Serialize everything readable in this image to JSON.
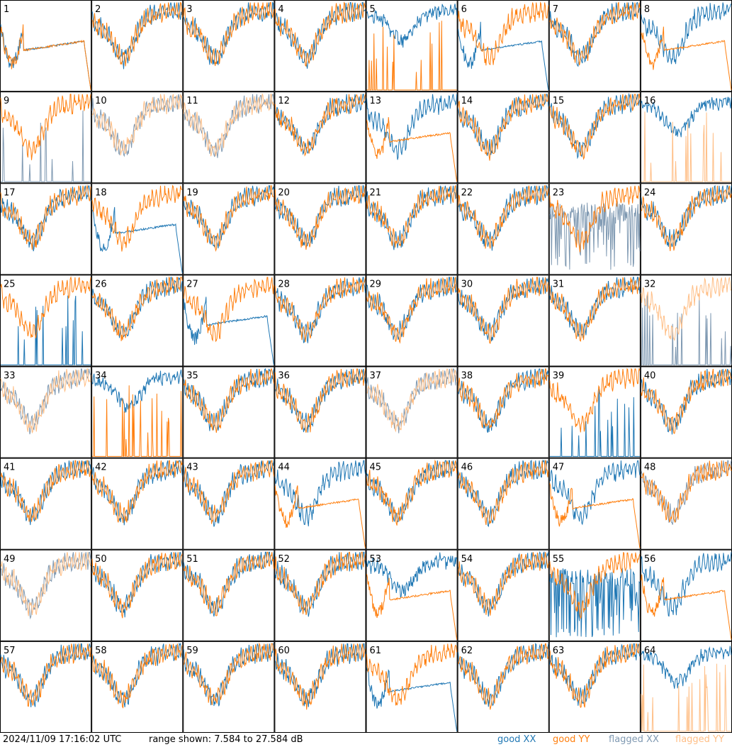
{
  "footer": {
    "timestamp": "2024/11/09 17:16:02 UTC",
    "range": "range shown: 7.584 to 27.584 dB"
  },
  "legend": {
    "good_xx": "good XX",
    "good_yy": "good YY",
    "flagged_xx": "flagged XX",
    "flagged_yy": "flagged YY"
  },
  "colors": {
    "good_xx": "#1f77b4",
    "good_yy": "#ff7f0e",
    "flagged_xx": "#7f99b2",
    "flagged_yy": "#ffbf87"
  },
  "chart_data": {
    "type": "line",
    "grid": {
      "rows": 8,
      "cols": 8
    },
    "ylim": [
      7.584,
      27.584
    ],
    "y_unit": "dB",
    "panels": [
      {
        "id": "1",
        "xx": "good",
        "yy": "good",
        "xx_shape": "sag",
        "yy_shape": "sag"
      },
      {
        "id": "2",
        "xx": "good",
        "yy": "good",
        "xx_shape": "normal",
        "yy_shape": "normal"
      },
      {
        "id": "3",
        "xx": "good",
        "yy": "good",
        "xx_shape": "normal",
        "yy_shape": "normal"
      },
      {
        "id": "4",
        "xx": "good",
        "yy": "good",
        "xx_shape": "normal",
        "yy_shape": "normal"
      },
      {
        "id": "5",
        "xx": "good",
        "yy": "good",
        "xx_shape": "high",
        "yy_shape": "spikes"
      },
      {
        "id": "6",
        "xx": "good",
        "yy": "good",
        "xx_shape": "sag",
        "yy_shape": "normal"
      },
      {
        "id": "7",
        "xx": "good",
        "yy": "good",
        "xx_shape": "normal",
        "yy_shape": "normal"
      },
      {
        "id": "8",
        "xx": "good",
        "yy": "good",
        "xx_shape": "normal",
        "yy_shape": "sag"
      },
      {
        "id": "9",
        "xx": "flagged",
        "yy": "good",
        "xx_shape": "spikes",
        "yy_shape": "normal"
      },
      {
        "id": "10",
        "xx": "flagged",
        "yy": "flagged",
        "xx_shape": "normal",
        "yy_shape": "normal"
      },
      {
        "id": "11",
        "xx": "flagged",
        "yy": "flagged",
        "xx_shape": "normal",
        "yy_shape": "normal"
      },
      {
        "id": "12",
        "xx": "good",
        "yy": "good",
        "xx_shape": "normal",
        "yy_shape": "normal"
      },
      {
        "id": "13",
        "xx": "good",
        "yy": "good",
        "xx_shape": "normal",
        "yy_shape": "sag"
      },
      {
        "id": "14",
        "xx": "good",
        "yy": "good",
        "xx_shape": "normal",
        "yy_shape": "normal"
      },
      {
        "id": "15",
        "xx": "good",
        "yy": "good",
        "xx_shape": "normal",
        "yy_shape": "normal"
      },
      {
        "id": "16",
        "xx": "good",
        "yy": "flagged",
        "xx_shape": "high",
        "yy_shape": "spikes"
      },
      {
        "id": "17",
        "xx": "good",
        "yy": "good",
        "xx_shape": "normal",
        "yy_shape": "normal"
      },
      {
        "id": "18",
        "xx": "good",
        "yy": "good",
        "xx_shape": "sag",
        "yy_shape": "normal"
      },
      {
        "id": "19",
        "xx": "good",
        "yy": "good",
        "xx_shape": "normal",
        "yy_shape": "normal"
      },
      {
        "id": "20",
        "xx": "good",
        "yy": "good",
        "xx_shape": "normal",
        "yy_shape": "normal"
      },
      {
        "id": "21",
        "xx": "good",
        "yy": "good",
        "xx_shape": "normal",
        "yy_shape": "normal"
      },
      {
        "id": "22",
        "xx": "good",
        "yy": "good",
        "xx_shape": "normal",
        "yy_shape": "normal"
      },
      {
        "id": "23",
        "xx": "flagged",
        "yy": "good",
        "xx_shape": "dropouts",
        "yy_shape": "normal"
      },
      {
        "id": "24",
        "xx": "good",
        "yy": "good",
        "xx_shape": "normal",
        "yy_shape": "normal"
      },
      {
        "id": "25",
        "xx": "good",
        "yy": "good",
        "xx_shape": "spikes",
        "yy_shape": "normal"
      },
      {
        "id": "26",
        "xx": "good",
        "yy": "good",
        "xx_shape": "normal",
        "yy_shape": "normal"
      },
      {
        "id": "27",
        "xx": "good",
        "yy": "good",
        "xx_shape": "sag",
        "yy_shape": "normal"
      },
      {
        "id": "28",
        "xx": "good",
        "yy": "good",
        "xx_shape": "normal",
        "yy_shape": "normal"
      },
      {
        "id": "29",
        "xx": "good",
        "yy": "good",
        "xx_shape": "normal",
        "yy_shape": "normal"
      },
      {
        "id": "30",
        "xx": "good",
        "yy": "good",
        "xx_shape": "normal",
        "yy_shape": "normal"
      },
      {
        "id": "31",
        "xx": "good",
        "yy": "good",
        "xx_shape": "normal",
        "yy_shape": "normal"
      },
      {
        "id": "32",
        "xx": "flagged",
        "yy": "flagged",
        "xx_shape": "spikes",
        "yy_shape": "normal"
      },
      {
        "id": "33",
        "xx": "flagged",
        "yy": "flagged",
        "xx_shape": "normal",
        "yy_shape": "normal"
      },
      {
        "id": "34",
        "xx": "good",
        "yy": "good",
        "xx_shape": "high",
        "yy_shape": "spikes"
      },
      {
        "id": "35",
        "xx": "good",
        "yy": "good",
        "xx_shape": "normal",
        "yy_shape": "normal"
      },
      {
        "id": "36",
        "xx": "good",
        "yy": "good",
        "xx_shape": "normal",
        "yy_shape": "normal"
      },
      {
        "id": "37",
        "xx": "flagged",
        "yy": "flagged",
        "xx_shape": "normal",
        "yy_shape": "normal"
      },
      {
        "id": "38",
        "xx": "good",
        "yy": "good",
        "xx_shape": "normal",
        "yy_shape": "normal"
      },
      {
        "id": "39",
        "xx": "good",
        "yy": "good",
        "xx_shape": "spikes",
        "yy_shape": "normal"
      },
      {
        "id": "40",
        "xx": "good",
        "yy": "good",
        "xx_shape": "normal",
        "yy_shape": "normal"
      },
      {
        "id": "41",
        "xx": "good",
        "yy": "good",
        "xx_shape": "normal",
        "yy_shape": "normal"
      },
      {
        "id": "42",
        "xx": "good",
        "yy": "good",
        "xx_shape": "normal",
        "yy_shape": "normal"
      },
      {
        "id": "43",
        "xx": "good",
        "yy": "good",
        "xx_shape": "normal",
        "yy_shape": "normal"
      },
      {
        "id": "44",
        "xx": "good",
        "yy": "good",
        "xx_shape": "normal",
        "yy_shape": "sag"
      },
      {
        "id": "45",
        "xx": "good",
        "yy": "good",
        "xx_shape": "normal",
        "yy_shape": "normal"
      },
      {
        "id": "46",
        "xx": "good",
        "yy": "good",
        "xx_shape": "normal",
        "yy_shape": "normal"
      },
      {
        "id": "47",
        "xx": "good",
        "yy": "good",
        "xx_shape": "normal",
        "yy_shape": "sag"
      },
      {
        "id": "48",
        "xx": "flagged",
        "yy": "good",
        "xx_shape": "normal",
        "yy_shape": "normal"
      },
      {
        "id": "49",
        "xx": "flagged",
        "yy": "flagged",
        "xx_shape": "normal",
        "yy_shape": "normal"
      },
      {
        "id": "50",
        "xx": "good",
        "yy": "good",
        "xx_shape": "normal",
        "yy_shape": "normal"
      },
      {
        "id": "51",
        "xx": "good",
        "yy": "good",
        "xx_shape": "normal",
        "yy_shape": "normal"
      },
      {
        "id": "52",
        "xx": "good",
        "yy": "good",
        "xx_shape": "normal",
        "yy_shape": "normal"
      },
      {
        "id": "53",
        "xx": "good",
        "yy": "good",
        "xx_shape": "high",
        "yy_shape": "sag"
      },
      {
        "id": "54",
        "xx": "good",
        "yy": "good",
        "xx_shape": "normal",
        "yy_shape": "normal"
      },
      {
        "id": "55",
        "xx": "good",
        "yy": "good",
        "xx_shape": "dropouts",
        "yy_shape": "normal"
      },
      {
        "id": "56",
        "xx": "good",
        "yy": "good",
        "xx_shape": "normal",
        "yy_shape": "sag"
      },
      {
        "id": "57",
        "xx": "good",
        "yy": "good",
        "xx_shape": "normal",
        "yy_shape": "normal"
      },
      {
        "id": "58",
        "xx": "good",
        "yy": "good",
        "xx_shape": "normal",
        "yy_shape": "normal"
      },
      {
        "id": "59",
        "xx": "good",
        "yy": "good",
        "xx_shape": "normal",
        "yy_shape": "normal"
      },
      {
        "id": "60",
        "xx": "good",
        "yy": "good",
        "xx_shape": "normal",
        "yy_shape": "normal"
      },
      {
        "id": "61",
        "xx": "good",
        "yy": "good",
        "xx_shape": "sag",
        "yy_shape": "normal"
      },
      {
        "id": "62",
        "xx": "good",
        "yy": "good",
        "xx_shape": "normal",
        "yy_shape": "normal"
      },
      {
        "id": "63",
        "xx": "good",
        "yy": "good",
        "xx_shape": "normal",
        "yy_shape": "normal"
      },
      {
        "id": "64",
        "xx": "good",
        "yy": "flagged",
        "xx_shape": "high",
        "yy_shape": "spikes"
      }
    ]
  }
}
